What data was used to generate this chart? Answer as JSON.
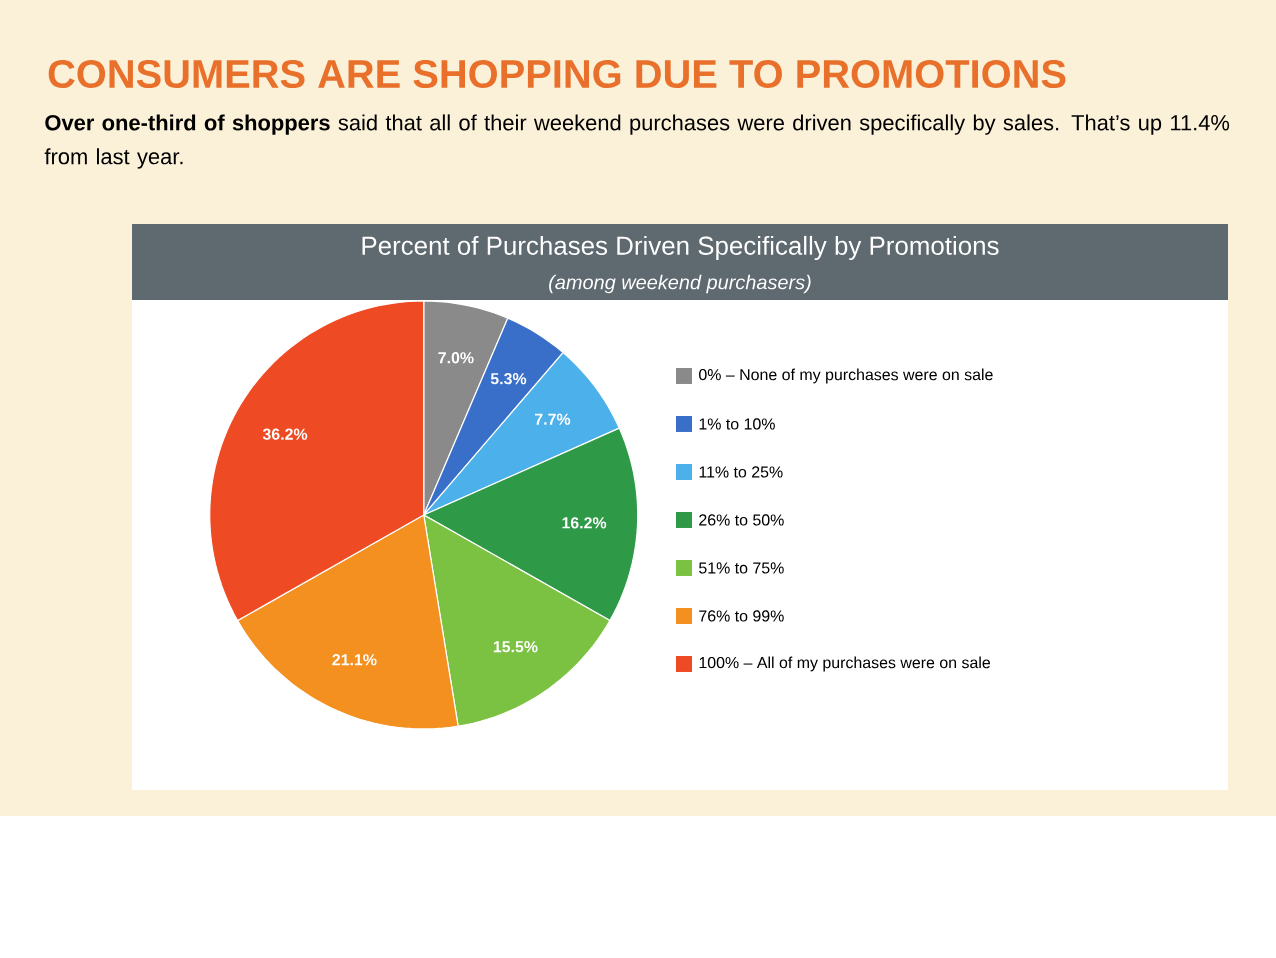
{
  "chart_data": {
    "type": "pie",
    "title": "CONSUMERS ARE SHOPPING DUE TO PROMOTIONS",
    "subtitle": "**Over one-third of shoppers** said that all of their weekend purchases were driven specifically by sales. That’s up 11.4% from last year.",
    "annotations": [
      "Percent of Purchases Driven Specifically by Promotions",
      "(among weekend purchasers)"
    ],
    "categories": [
      "0% – None of my purchases were on sale",
      "1% to 10%",
      "11% to 25%",
      "26% to 50%",
      "51% to 75%",
      "76% to 99%",
      "100% – All of my purchases were on sale"
    ],
    "values": [
      7.0,
      5.3,
      7.7,
      16.2,
      15.5,
      21.1,
      36.2
    ],
    "value_labels": [
      "7.0%",
      "5.3%",
      "7.7%",
      "16.2%",
      "15.5%",
      "21.1%",
      "36.2%"
    ],
    "colors": [
      "#8a8a8a",
      "#3a6fc9",
      "#4cb0ea",
      "#2e9a48",
      "#7cc242",
      "#f39020",
      "#ee4a24"
    ],
    "legend": "right"
  }
}
